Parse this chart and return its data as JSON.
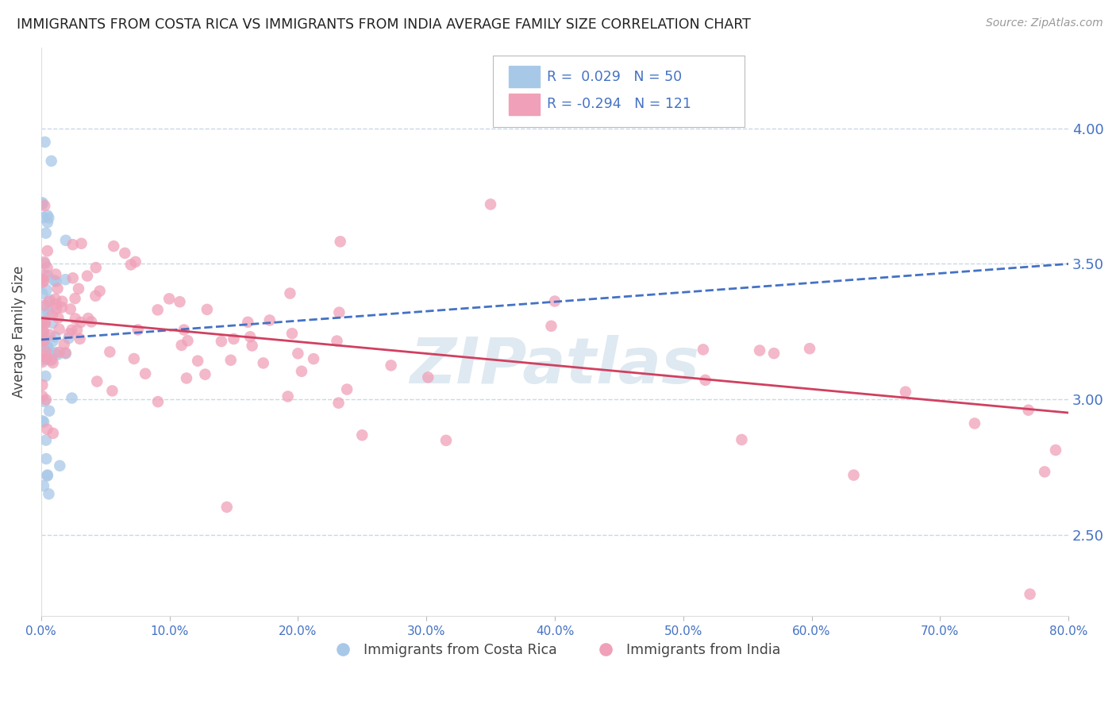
{
  "title": "IMMIGRANTS FROM COSTA RICA VS IMMIGRANTS FROM INDIA AVERAGE FAMILY SIZE CORRELATION CHART",
  "source_text": "Source: ZipAtlas.com",
  "ylabel": "Average Family Size",
  "R1": 0.029,
  "N1": 50,
  "R2": -0.294,
  "N2": 121,
  "legend_label1": "Immigrants from Costa Rica",
  "legend_label2": "Immigrants from India",
  "color1": "#a8c8e8",
  "color2": "#f0a0b8",
  "trendline1_color": "#4472c4",
  "trendline2_color": "#d04060",
  "axis_color": "#4472c4",
  "grid_color": "#c8d8e8",
  "background_color": "#ffffff",
  "xlim": [
    0.0,
    0.8
  ],
  "ylim": [
    2.2,
    4.3
  ],
  "yticks": [
    2.5,
    3.0,
    3.5,
    4.0
  ],
  "xticks": [
    0.0,
    0.1,
    0.2,
    0.3,
    0.4,
    0.5,
    0.6,
    0.7,
    0.8
  ],
  "xtick_labels": [
    "0.0%",
    "10.0%",
    "20.0%",
    "30.0%",
    "40.0%",
    "50.0%",
    "60.0%",
    "70.0%",
    "80.0%"
  ],
  "watermark": "ZIPatlas",
  "trendline1_x0": 0.0,
  "trendline1_y0": 3.22,
  "trendline1_x1": 0.8,
  "trendline1_y1": 3.5,
  "trendline2_x0": 0.0,
  "trendline2_y0": 3.3,
  "trendline2_x1": 0.8,
  "trendline2_y1": 2.95
}
